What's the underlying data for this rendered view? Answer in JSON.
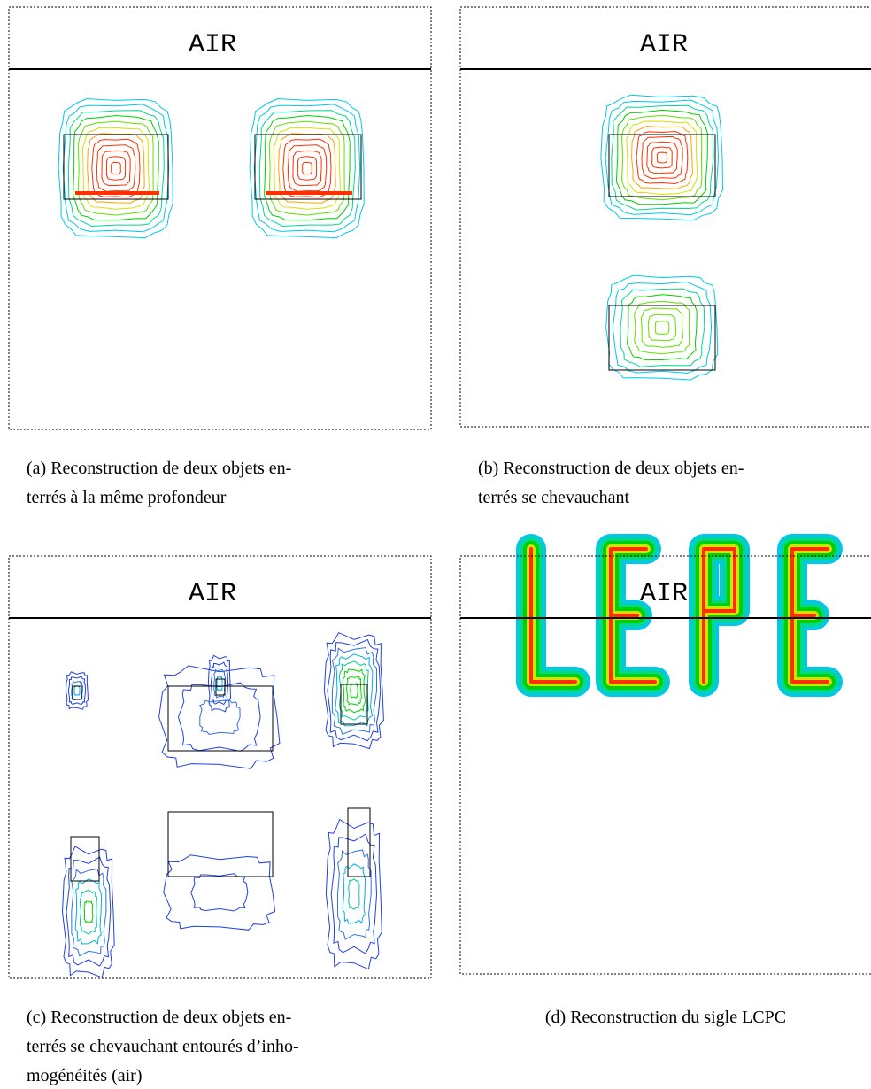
{
  "panels": [
    {
      "header": "AIR",
      "caption_lines": [
        "(a) Reconstruction de deux objets en-",
        "terrés à la même profondeur"
      ]
    },
    {
      "header": "AIR",
      "caption_lines": [
        "(b) Reconstruction de deux objets en-",
        "terrés se chevauchant"
      ]
    },
    {
      "header": "AIR",
      "caption_lines": [
        "(c) Reconstruction de deux objets en-",
        "terrés se chevauchant entourés d’inho-",
        "mogénéités (air)"
      ]
    },
    {
      "header": "AIR",
      "caption_lines": [
        "(d) Reconstruction du sigle LCPC"
      ]
    }
  ]
}
